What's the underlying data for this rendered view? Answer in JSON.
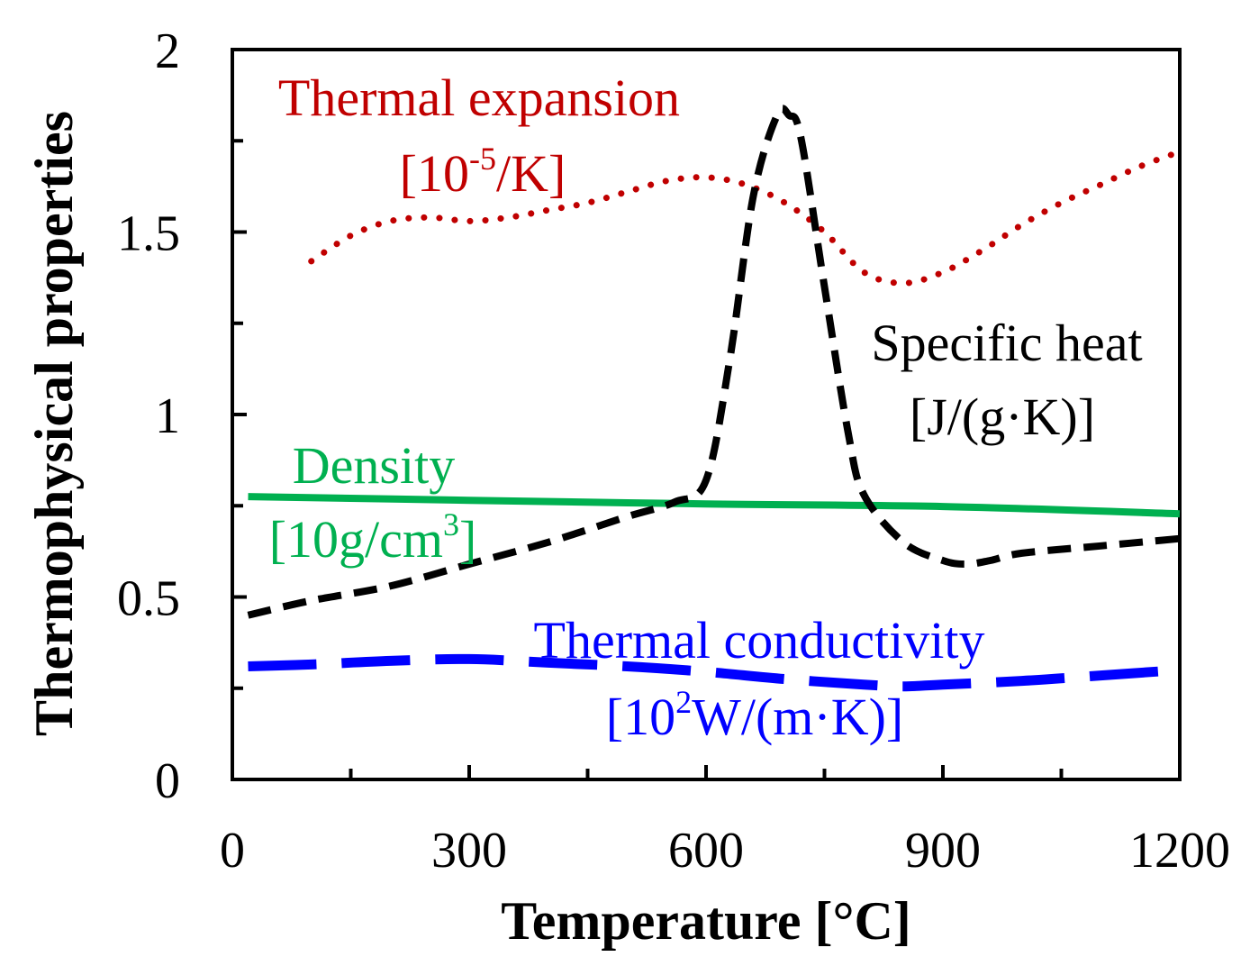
{
  "chart_data": {
    "type": "line",
    "title": "",
    "xlabel": "Temperature [°C]",
    "ylabel": "Thermophysical properties",
    "xlim": [
      0,
      1200
    ],
    "ylim": [
      0,
      2
    ],
    "x_ticks": [
      0,
      300,
      600,
      900,
      1200
    ],
    "x_tick_labels": [
      "0",
      "300",
      "600",
      "900",
      "1200"
    ],
    "x_minor_ticks": [
      150,
      450,
      750,
      1050
    ],
    "y_ticks": [
      0,
      0.5,
      1,
      1.5,
      2
    ],
    "y_tick_labels": [
      "0",
      "0.5",
      "1",
      "1.5",
      "2"
    ],
    "y_minor_ticks": [
      0.25,
      0.75,
      1.25,
      1.75
    ],
    "grid": false,
    "series": [
      {
        "id": "thermal_expansion",
        "name": "Thermal expansion",
        "unit_base": "[10",
        "unit_sup": "-5",
        "unit_rest": "/K]",
        "color": "#c00000",
        "style": "dotted",
        "x": [
          100,
          150,
          200,
          250,
          300,
          350,
          400,
          450,
          500,
          550,
          600,
          650,
          700,
          750,
          800,
          850,
          900,
          950,
          1000,
          1050,
          1100,
          1150,
          1200
        ],
        "y": [
          1.42,
          1.49,
          1.53,
          1.54,
          1.53,
          1.54,
          1.56,
          1.58,
          1.61,
          1.64,
          1.65,
          1.63,
          1.58,
          1.5,
          1.39,
          1.36,
          1.39,
          1.45,
          1.52,
          1.58,
          1.63,
          1.68,
          1.72
        ]
      },
      {
        "id": "specific_heat",
        "name": "Specific heat",
        "unit_base": "[J/(g·K)]",
        "unit_sup": "",
        "unit_rest": "",
        "color": "#000000",
        "style": "short-dash",
        "x": [
          20,
          100,
          200,
          300,
          400,
          500,
          560,
          600,
          630,
          660,
          690,
          705,
          720,
          750,
          780,
          800,
          850,
          900,
          930,
          960,
          1000,
          1100,
          1200
        ],
        "y": [
          0.45,
          0.49,
          0.53,
          0.59,
          0.65,
          0.72,
          0.76,
          0.82,
          1.15,
          1.6,
          1.82,
          1.82,
          1.76,
          1.35,
          0.95,
          0.78,
          0.65,
          0.6,
          0.59,
          0.6,
          0.62,
          0.64,
          0.66
        ]
      },
      {
        "id": "density",
        "name": "Density",
        "unit_base": "[10g/cm",
        "unit_sup": "3",
        "unit_rest": "]",
        "color": "#00b050",
        "style": "solid",
        "x": [
          20,
          300,
          600,
          900,
          1200
        ],
        "y": [
          0.775,
          0.765,
          0.755,
          0.748,
          0.728
        ]
      },
      {
        "id": "thermal_conductivity",
        "name": "Thermal conductivity",
        "unit_base": "[10",
        "unit_sup": "2",
        "unit_rest": "W/(m·K)]",
        "color": "#0000ff",
        "style": "long-dash",
        "x": [
          20,
          100,
          200,
          300,
          400,
          500,
          600,
          700,
          800,
          850,
          900,
          1000,
          1100,
          1200
        ],
        "y": [
          0.31,
          0.315,
          0.325,
          0.33,
          0.32,
          0.31,
          0.295,
          0.275,
          0.26,
          0.255,
          0.26,
          0.27,
          0.285,
          0.3
        ]
      }
    ]
  }
}
